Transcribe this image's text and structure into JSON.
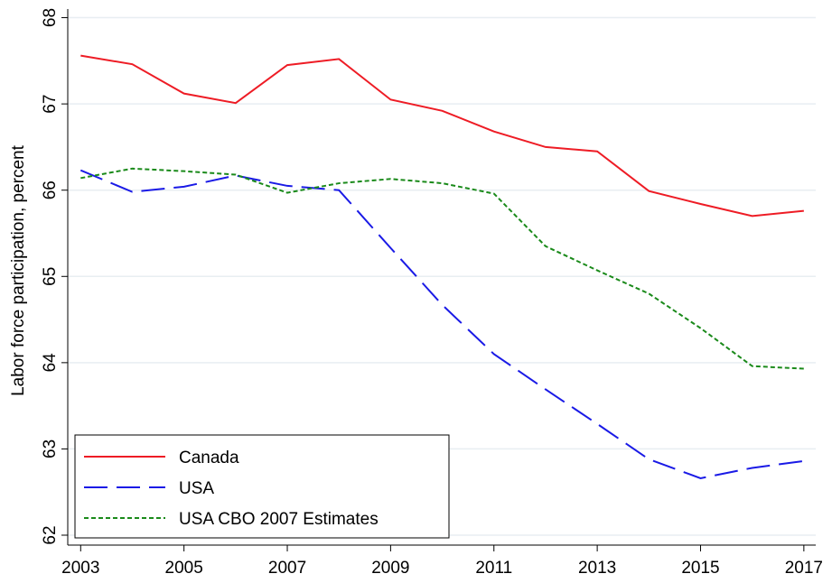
{
  "chart_data": {
    "type": "line",
    "y_label": "Labor force participation, percent",
    "x": [
      2003,
      2004,
      2005,
      2006,
      2007,
      2008,
      2009,
      2010,
      2011,
      2012,
      2013,
      2014,
      2015,
      2016,
      2017
    ],
    "series": [
      {
        "name": "Canada",
        "color": "#ee1c25",
        "style": "solid",
        "values": [
          67.56,
          67.46,
          67.12,
          67.01,
          67.45,
          67.52,
          67.05,
          66.92,
          66.68,
          66.5,
          66.45,
          65.99,
          65.84,
          65.7,
          65.76
        ]
      },
      {
        "name": "USA",
        "color": "#1a1ae6",
        "style": "dashed",
        "values": [
          66.23,
          65.98,
          66.04,
          66.17,
          66.05,
          66.0,
          65.33,
          64.67,
          64.1,
          63.69,
          63.29,
          62.88,
          62.66,
          62.78,
          62.86
        ]
      },
      {
        "name": "USA CBO 2007 Estimates",
        "color": "#1a8a1a",
        "style": "dotted",
        "values": [
          66.14,
          66.25,
          66.22,
          66.18,
          65.97,
          66.08,
          66.13,
          66.08,
          65.96,
          65.35,
          65.07,
          64.8,
          64.4,
          63.96,
          63.93
        ]
      }
    ],
    "xlim": [
      2002.75,
      2017.23
    ],
    "xticks": [
      2003,
      2005,
      2007,
      2009,
      2011,
      2013,
      2015,
      2017
    ],
    "ylim": [
      61.885,
      68.1
    ],
    "yticks": [
      62,
      63,
      64,
      65,
      66,
      67,
      68
    ],
    "grid": true,
    "legend": "lower left"
  }
}
